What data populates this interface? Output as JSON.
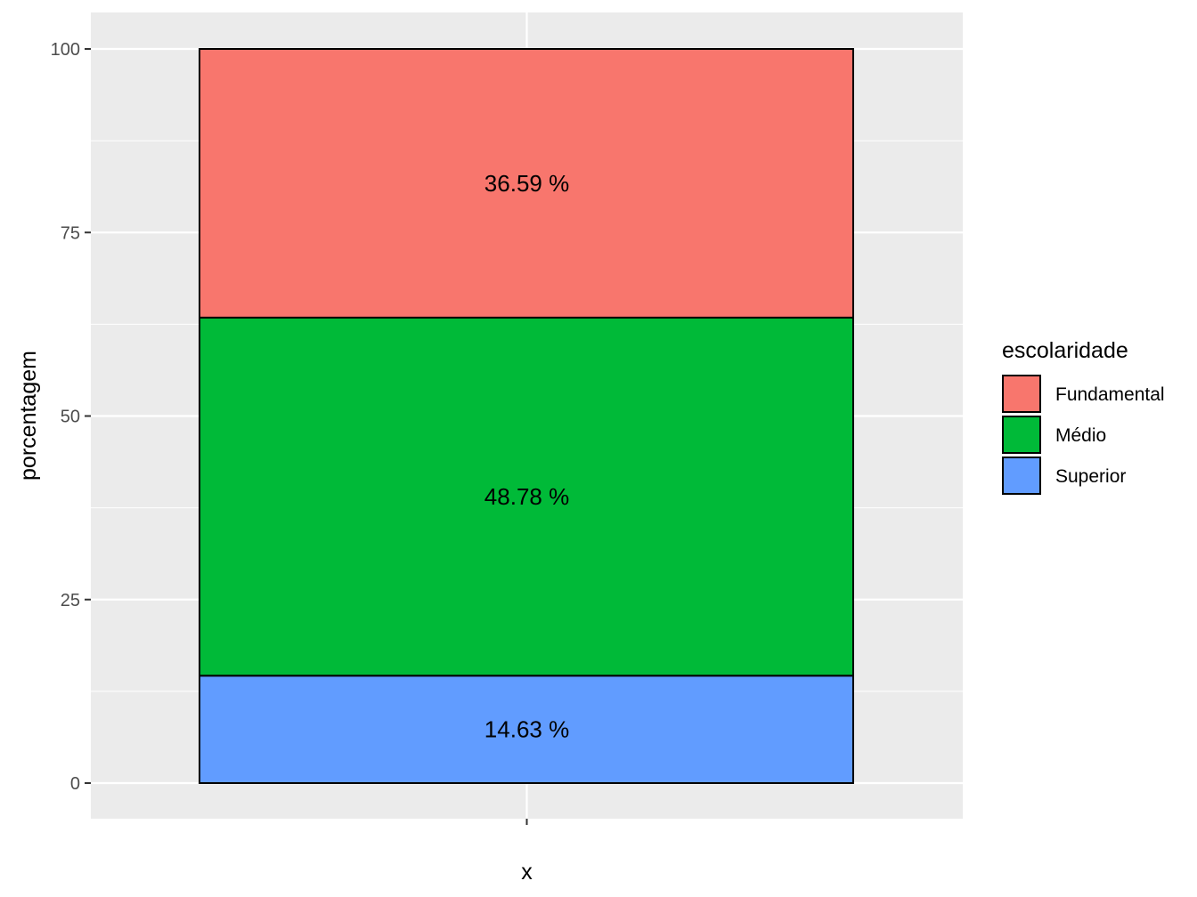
{
  "chart_data": {
    "type": "bar",
    "stacked": true,
    "categories": [
      ""
    ],
    "series": [
      {
        "name": "Fundamental",
        "values": [
          36.59
        ],
        "color": "#F8766D",
        "label": "36.59 %"
      },
      {
        "name": "Médio",
        "values": [
          48.78
        ],
        "color": "#00BA38",
        "label": "48.78 %"
      },
      {
        "name": "Superior",
        "values": [
          14.63
        ],
        "color": "#619CFF",
        "label": "14.63 %"
      }
    ],
    "stack_order_bottom_to_top": [
      "Superior",
      "Médio",
      "Fundamental"
    ],
    "xlabel": "x",
    "ylabel": "porcentagem",
    "ylim": [
      0,
      100
    ],
    "yticks": [
      0,
      25,
      50,
      75,
      100
    ],
    "ytick_labels": [
      "0",
      "25",
      "50",
      "75",
      "100"
    ],
    "grid": true,
    "legend": {
      "title": "escolaridade",
      "placement": "right"
    },
    "panel_background": "#EBEBEB"
  }
}
